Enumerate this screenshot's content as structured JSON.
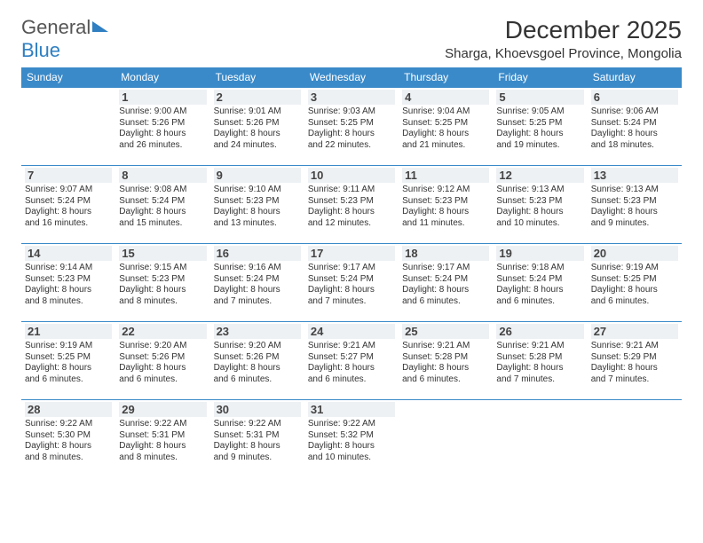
{
  "logo": {
    "word1": "General",
    "word2": "Blue"
  },
  "title": "December 2025",
  "location": "Sharga, Khoevsgoel Province, Mongolia",
  "colors": {
    "header_bg": "#3a8ac9",
    "header_text": "#ffffff",
    "daynum_bg": "#eef1f4",
    "border": "#3a8ac9",
    "logo_blue": "#2f7fc2",
    "body_text": "#333333",
    "background": "#ffffff"
  },
  "typography": {
    "title_fontsize": 28,
    "location_fontsize": 15,
    "dayheader_fontsize": 12,
    "daynum_fontsize": 13,
    "cell_fontsize": 10
  },
  "layout": {
    "columns": 7,
    "rows": 5,
    "first_weekday_offset": 1
  },
  "day_headers": [
    "Sunday",
    "Monday",
    "Tuesday",
    "Wednesday",
    "Thursday",
    "Friday",
    "Saturday"
  ],
  "days": [
    {
      "n": 1,
      "sunrise": "Sunrise: 9:00 AM",
      "sunset": "Sunset: 5:26 PM",
      "d1": "Daylight: 8 hours",
      "d2": "and 26 minutes."
    },
    {
      "n": 2,
      "sunrise": "Sunrise: 9:01 AM",
      "sunset": "Sunset: 5:26 PM",
      "d1": "Daylight: 8 hours",
      "d2": "and 24 minutes."
    },
    {
      "n": 3,
      "sunrise": "Sunrise: 9:03 AM",
      "sunset": "Sunset: 5:25 PM",
      "d1": "Daylight: 8 hours",
      "d2": "and 22 minutes."
    },
    {
      "n": 4,
      "sunrise": "Sunrise: 9:04 AM",
      "sunset": "Sunset: 5:25 PM",
      "d1": "Daylight: 8 hours",
      "d2": "and 21 minutes."
    },
    {
      "n": 5,
      "sunrise": "Sunrise: 9:05 AM",
      "sunset": "Sunset: 5:25 PM",
      "d1": "Daylight: 8 hours",
      "d2": "and 19 minutes."
    },
    {
      "n": 6,
      "sunrise": "Sunrise: 9:06 AM",
      "sunset": "Sunset: 5:24 PM",
      "d1": "Daylight: 8 hours",
      "d2": "and 18 minutes."
    },
    {
      "n": 7,
      "sunrise": "Sunrise: 9:07 AM",
      "sunset": "Sunset: 5:24 PM",
      "d1": "Daylight: 8 hours",
      "d2": "and 16 minutes."
    },
    {
      "n": 8,
      "sunrise": "Sunrise: 9:08 AM",
      "sunset": "Sunset: 5:24 PM",
      "d1": "Daylight: 8 hours",
      "d2": "and 15 minutes."
    },
    {
      "n": 9,
      "sunrise": "Sunrise: 9:10 AM",
      "sunset": "Sunset: 5:23 PM",
      "d1": "Daylight: 8 hours",
      "d2": "and 13 minutes."
    },
    {
      "n": 10,
      "sunrise": "Sunrise: 9:11 AM",
      "sunset": "Sunset: 5:23 PM",
      "d1": "Daylight: 8 hours",
      "d2": "and 12 minutes."
    },
    {
      "n": 11,
      "sunrise": "Sunrise: 9:12 AM",
      "sunset": "Sunset: 5:23 PM",
      "d1": "Daylight: 8 hours",
      "d2": "and 11 minutes."
    },
    {
      "n": 12,
      "sunrise": "Sunrise: 9:13 AM",
      "sunset": "Sunset: 5:23 PM",
      "d1": "Daylight: 8 hours",
      "d2": "and 10 minutes."
    },
    {
      "n": 13,
      "sunrise": "Sunrise: 9:13 AM",
      "sunset": "Sunset: 5:23 PM",
      "d1": "Daylight: 8 hours",
      "d2": "and 9 minutes."
    },
    {
      "n": 14,
      "sunrise": "Sunrise: 9:14 AM",
      "sunset": "Sunset: 5:23 PM",
      "d1": "Daylight: 8 hours",
      "d2": "and 8 minutes."
    },
    {
      "n": 15,
      "sunrise": "Sunrise: 9:15 AM",
      "sunset": "Sunset: 5:23 PM",
      "d1": "Daylight: 8 hours",
      "d2": "and 8 minutes."
    },
    {
      "n": 16,
      "sunrise": "Sunrise: 9:16 AM",
      "sunset": "Sunset: 5:24 PM",
      "d1": "Daylight: 8 hours",
      "d2": "and 7 minutes."
    },
    {
      "n": 17,
      "sunrise": "Sunrise: 9:17 AM",
      "sunset": "Sunset: 5:24 PM",
      "d1": "Daylight: 8 hours",
      "d2": "and 7 minutes."
    },
    {
      "n": 18,
      "sunrise": "Sunrise: 9:17 AM",
      "sunset": "Sunset: 5:24 PM",
      "d1": "Daylight: 8 hours",
      "d2": "and 6 minutes."
    },
    {
      "n": 19,
      "sunrise": "Sunrise: 9:18 AM",
      "sunset": "Sunset: 5:24 PM",
      "d1": "Daylight: 8 hours",
      "d2": "and 6 minutes."
    },
    {
      "n": 20,
      "sunrise": "Sunrise: 9:19 AM",
      "sunset": "Sunset: 5:25 PM",
      "d1": "Daylight: 8 hours",
      "d2": "and 6 minutes."
    },
    {
      "n": 21,
      "sunrise": "Sunrise: 9:19 AM",
      "sunset": "Sunset: 5:25 PM",
      "d1": "Daylight: 8 hours",
      "d2": "and 6 minutes."
    },
    {
      "n": 22,
      "sunrise": "Sunrise: 9:20 AM",
      "sunset": "Sunset: 5:26 PM",
      "d1": "Daylight: 8 hours",
      "d2": "and 6 minutes."
    },
    {
      "n": 23,
      "sunrise": "Sunrise: 9:20 AM",
      "sunset": "Sunset: 5:26 PM",
      "d1": "Daylight: 8 hours",
      "d2": "and 6 minutes."
    },
    {
      "n": 24,
      "sunrise": "Sunrise: 9:21 AM",
      "sunset": "Sunset: 5:27 PM",
      "d1": "Daylight: 8 hours",
      "d2": "and 6 minutes."
    },
    {
      "n": 25,
      "sunrise": "Sunrise: 9:21 AM",
      "sunset": "Sunset: 5:28 PM",
      "d1": "Daylight: 8 hours",
      "d2": "and 6 minutes."
    },
    {
      "n": 26,
      "sunrise": "Sunrise: 9:21 AM",
      "sunset": "Sunset: 5:28 PM",
      "d1": "Daylight: 8 hours",
      "d2": "and 7 minutes."
    },
    {
      "n": 27,
      "sunrise": "Sunrise: 9:21 AM",
      "sunset": "Sunset: 5:29 PM",
      "d1": "Daylight: 8 hours",
      "d2": "and 7 minutes."
    },
    {
      "n": 28,
      "sunrise": "Sunrise: 9:22 AM",
      "sunset": "Sunset: 5:30 PM",
      "d1": "Daylight: 8 hours",
      "d2": "and 8 minutes."
    },
    {
      "n": 29,
      "sunrise": "Sunrise: 9:22 AM",
      "sunset": "Sunset: 5:31 PM",
      "d1": "Daylight: 8 hours",
      "d2": "and 8 minutes."
    },
    {
      "n": 30,
      "sunrise": "Sunrise: 9:22 AM",
      "sunset": "Sunset: 5:31 PM",
      "d1": "Daylight: 8 hours",
      "d2": "and 9 minutes."
    },
    {
      "n": 31,
      "sunrise": "Sunrise: 9:22 AM",
      "sunset": "Sunset: 5:32 PM",
      "d1": "Daylight: 8 hours",
      "d2": "and 10 minutes."
    }
  ]
}
